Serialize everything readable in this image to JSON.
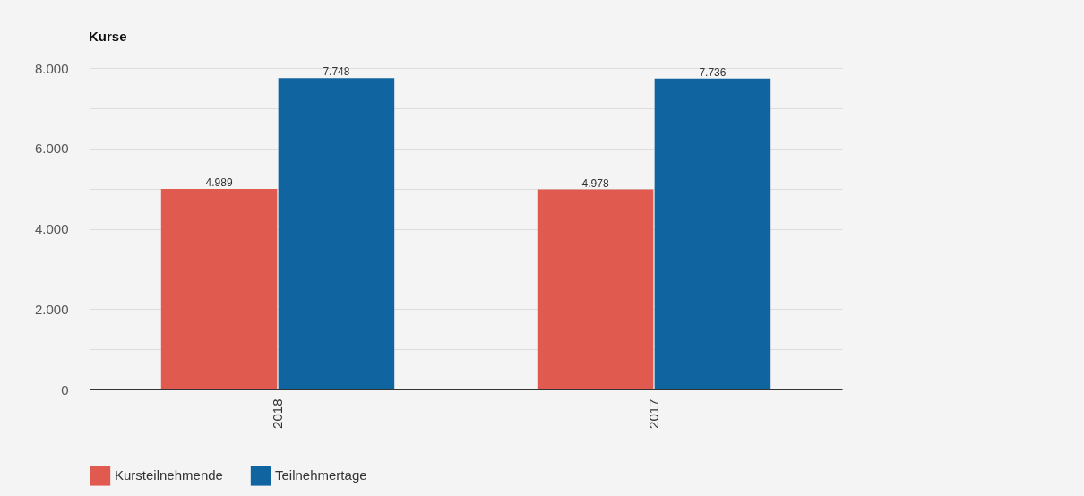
{
  "chart_data": {
    "type": "bar",
    "title": "Kurse",
    "categories": [
      "2018",
      "2017"
    ],
    "series": [
      {
        "name": "Kursteilnehmende",
        "color": "#e05a50",
        "values": [
          4989,
          4978
        ],
        "value_labels": [
          "4.989",
          "4.978"
        ]
      },
      {
        "name": "Teilnehmertage",
        "color": "#1064a0",
        "values": [
          7748,
          7736
        ],
        "value_labels": [
          "7.748",
          "7.736"
        ]
      }
    ],
    "ylim": [
      0,
      8000
    ],
    "yticks": [
      0,
      {
        "value": 1000,
        "label": null
      },
      {
        "value": 2000,
        "label": "2.000"
      },
      {
        "value": 3000,
        "label": null
      },
      {
        "value": 4000,
        "label": "4.000"
      },
      {
        "value": 5000,
        "label": null
      },
      {
        "value": 6000,
        "label": "6.000"
      },
      {
        "value": 7000,
        "label": null
      },
      {
        "value": 8000,
        "label": "8.000"
      }
    ],
    "grid": "y",
    "legend": "bottom left"
  }
}
